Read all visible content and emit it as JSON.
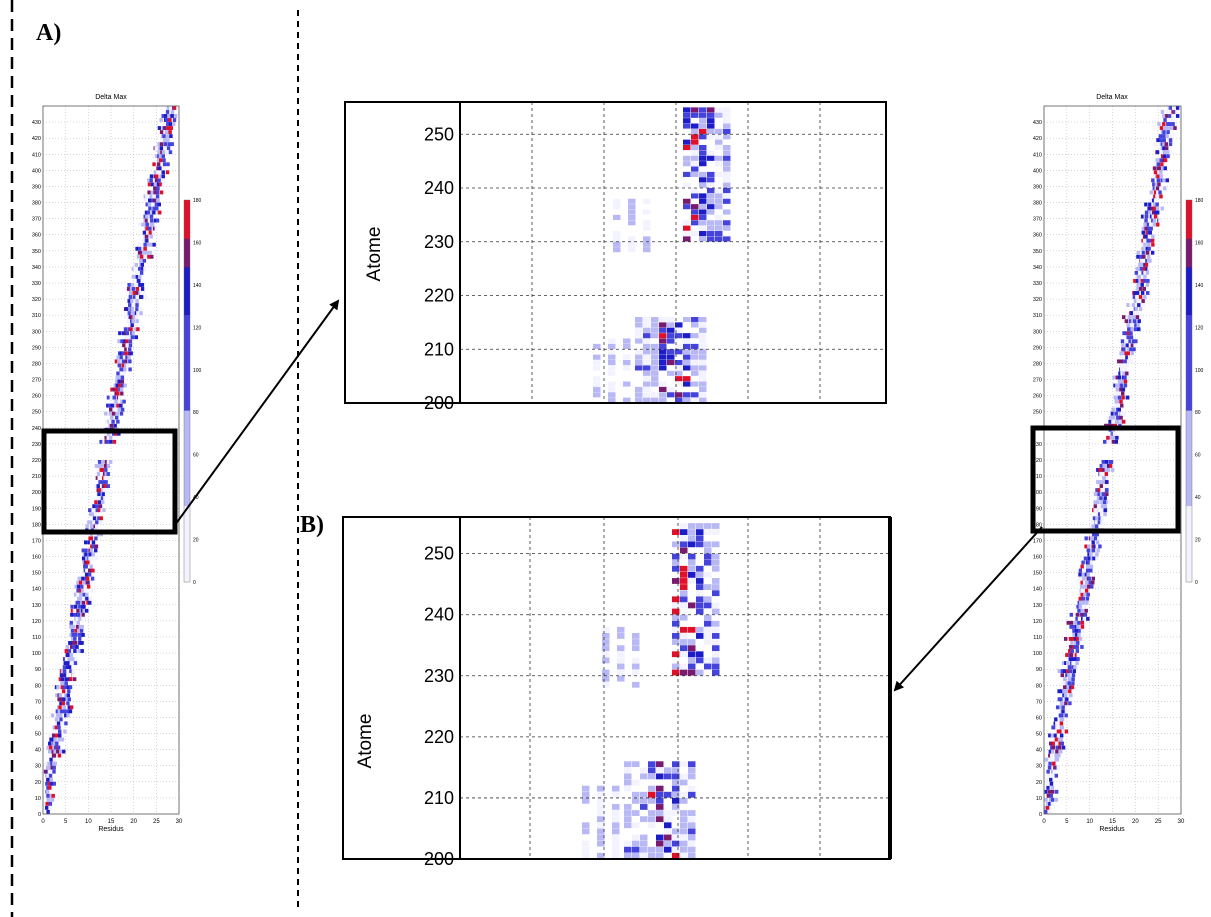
{
  "labels": {
    "panel_a": "A)",
    "panel_b": "B)"
  },
  "colors": {
    "low": "#f3f3ff",
    "mid": "#4444dd",
    "blue": "#1c1cc8",
    "purple": "#7a1a6e",
    "high": "#e0102a",
    "frame": "#000000",
    "grid": "#333333"
  },
  "chart_data": [
    {
      "id": "left-heatmap",
      "type": "heatmap",
      "title": "Delta Max",
      "xlabel": "Residus",
      "ylabel": "",
      "xlim": [
        0,
        30
      ],
      "ylim": [
        0,
        440
      ],
      "xticks": [
        0,
        5,
        10,
        15,
        20,
        25,
        30
      ],
      "yticks": [
        0,
        10,
        20,
        30,
        40,
        50,
        60,
        70,
        80,
        90,
        100,
        110,
        120,
        130,
        140,
        150,
        160,
        170,
        180,
        190,
        200,
        210,
        220,
        230,
        240,
        250,
        260,
        270,
        280,
        290,
        300,
        310,
        320,
        330,
        340,
        350,
        360,
        370,
        380,
        390,
        400,
        410,
        420,
        430
      ],
      "colorbar": {
        "min": 0,
        "max": 180,
        "ticks": [
          0,
          20,
          40,
          60,
          80,
          100,
          120,
          140,
          160,
          180
        ]
      },
      "highlight_box": {
        "x_range": [
          0,
          30
        ],
        "y_range": [
          199,
          256
        ]
      }
    },
    {
      "id": "right-heatmap",
      "type": "heatmap",
      "title": "Delta Max",
      "xlabel": "Residus",
      "ylabel": "",
      "xlim": [
        0,
        30
      ],
      "ylim": [
        0,
        440
      ],
      "xticks": [
        0,
        5,
        10,
        15,
        20,
        25,
        30
      ],
      "yticks": [
        0,
        10,
        20,
        30,
        40,
        50,
        60,
        70,
        80,
        90,
        100,
        110,
        120,
        130,
        140,
        150,
        160,
        170,
        180,
        190,
        200,
        210,
        220,
        230,
        240,
        250,
        260,
        270,
        280,
        290,
        300,
        310,
        320,
        330,
        340,
        350,
        360,
        370,
        380,
        390,
        400,
        410,
        420,
        430
      ],
      "colorbar": {
        "min": 0,
        "max": 180,
        "ticks": [
          0,
          20,
          40,
          60,
          80,
          100,
          120,
          140,
          160,
          180
        ]
      },
      "highlight_box": {
        "x_range": [
          0,
          30
        ],
        "y_range": [
          199,
          256
        ]
      }
    },
    {
      "id": "zoom-a",
      "type": "heatmap",
      "ylabel": "Atome",
      "ylim": [
        200,
        256
      ],
      "yticks": [
        200,
        210,
        220,
        230,
        240,
        250
      ]
    },
    {
      "id": "zoom-b",
      "type": "heatmap",
      "ylabel": "Atome",
      "ylim": [
        200,
        256
      ],
      "yticks": [
        200,
        210,
        220,
        230,
        240,
        250
      ]
    }
  ]
}
